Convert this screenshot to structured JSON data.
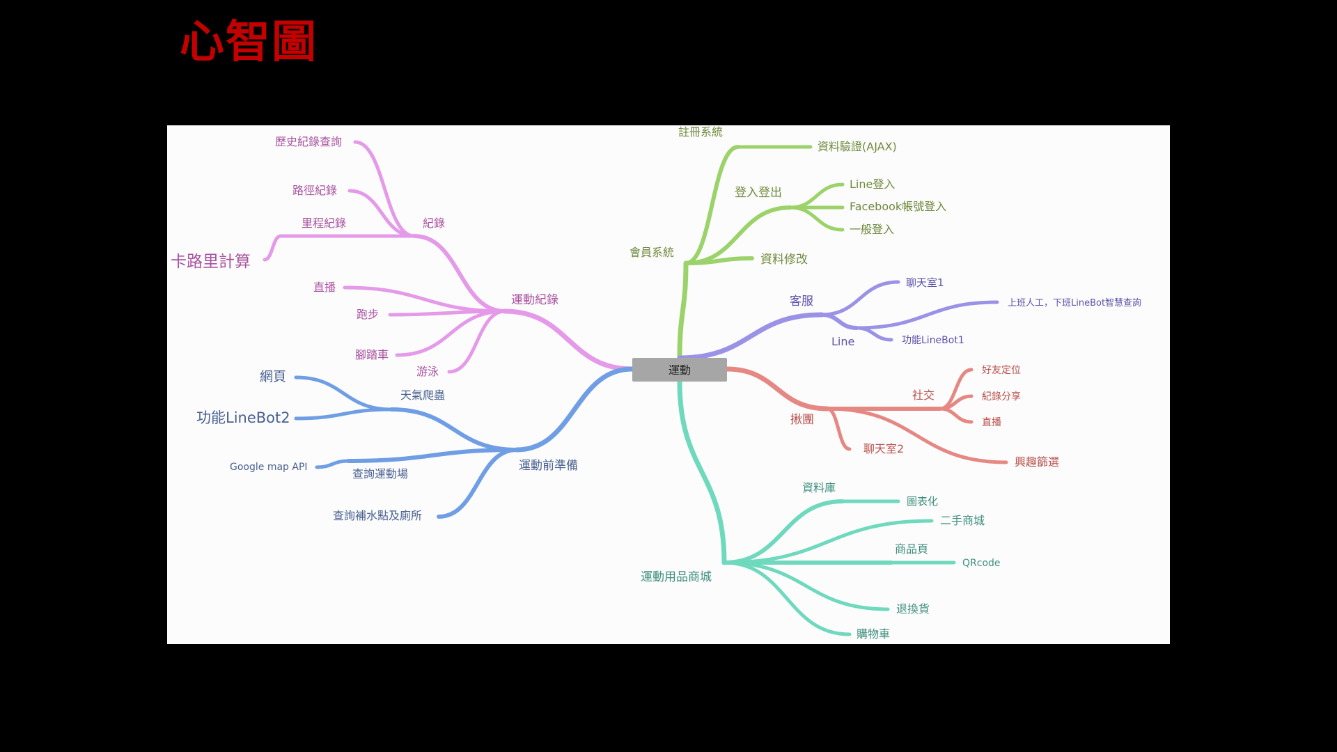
{
  "slide": {
    "title": "心智圖"
  },
  "mindmap": {
    "root": "運動",
    "colors": {
      "root_fill": "#a6a6a6",
      "purple_pink": "#e49ae8",
      "purple_pink_text": "#a8529f",
      "blue": "#6f9ee4",
      "blue_text": "#4a6190",
      "green": "#9bd36a",
      "green_text": "#6f8a3e",
      "violet": "#9a92e6",
      "violet_text": "#5b52a8",
      "red": "#e58883",
      "red_text": "#b8514c",
      "teal": "#6fd9bd",
      "teal_text": "#3f8f7d"
    },
    "branches": {
      "exercise_record": {
        "label": "運動紀錄",
        "record": {
          "label": "紀錄",
          "children": [
            "歷史紀錄查詢",
            "路徑紀錄",
            "里程紀錄"
          ]
        },
        "calorie": "卡路里計算",
        "others": [
          "直播",
          "跑步",
          "腳踏車",
          "游泳"
        ]
      },
      "prep": {
        "label": "運動前準備",
        "weather": {
          "label": "天氣爬蟲",
          "children": [
            "網頁",
            "功能LineBot2"
          ]
        },
        "venue": {
          "label": "查詢運動場",
          "children": [
            "Google map API"
          ]
        },
        "water": "查詢補水點及廁所"
      },
      "member": {
        "label": "會員系統",
        "register": {
          "label": "註冊系統",
          "children": [
            "資料驗證(AJAX)"
          ]
        },
        "login": {
          "label": "登入登出",
          "children": [
            "Line登入",
            "Facebook帳號登入",
            "一般登入"
          ]
        },
        "edit": "資料修改"
      },
      "service": {
        "label": "客服",
        "chat": "聊天室1",
        "line": {
          "label": "Line",
          "children": [
            "上班人工，下班LineBot智慧查詢",
            "功能LineBot1"
          ]
        }
      },
      "group": {
        "label": "揪團",
        "social": {
          "label": "社交",
          "children": [
            "好友定位",
            "紀錄分享",
            "直播"
          ]
        },
        "chat": "聊天室2",
        "filter": "興趣篩選"
      },
      "shop": {
        "label": "運動用品商城",
        "db": {
          "label": "資料庫",
          "children": [
            "圖表化"
          ]
        },
        "second": "二手商城",
        "product": {
          "label": "商品頁",
          "children": [
            "QRcode"
          ]
        },
        "return": "退換貨",
        "cart": "購物車"
      }
    }
  }
}
